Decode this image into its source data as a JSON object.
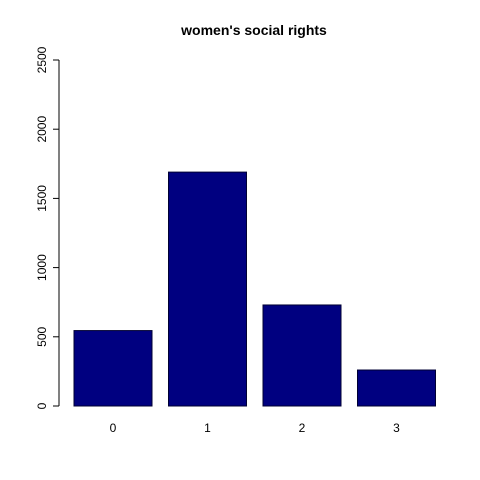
{
  "chart_data": {
    "type": "bar",
    "title": "women's social rights",
    "xlabel": "",
    "ylabel": "",
    "categories": [
      "0",
      "1",
      "2",
      "3"
    ],
    "values": [
      545,
      1690,
      730,
      260
    ],
    "ylim": [
      0,
      2500
    ],
    "yticks": [
      0,
      500,
      1000,
      1500,
      2000,
      2500
    ],
    "grid": false,
    "legend": "none",
    "bar_color": "#000080",
    "bar_border_color": "#000033"
  }
}
